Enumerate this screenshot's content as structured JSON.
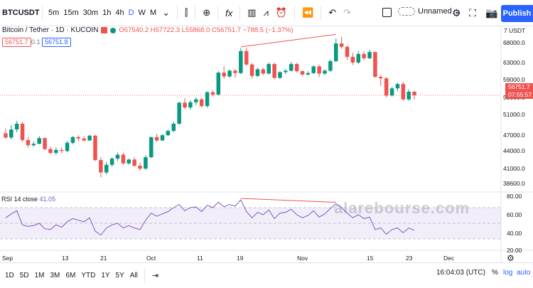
{
  "toolbar": {
    "symbol": "BTCUSDT",
    "intervals": [
      "5m",
      "15m",
      "30m",
      "1h",
      "4h",
      "D",
      "W",
      "M"
    ],
    "active_interval": "D",
    "icons": [
      "candles-icon",
      "add-compare-icon",
      "indicators-icon",
      "templates-icon",
      "alert-icon",
      "replay-icon",
      "undo-icon",
      "redo-icon"
    ],
    "layout_name": "Unnamed",
    "publish_label": "Publish"
  },
  "legend": {
    "title": "Bitcoin / Tether · 1D · KUCOIN",
    "ohlc": "O57540.2 H57722.3 L55868.0 C56751.7 −788.5 (−1.37%)",
    "bid": "56751.7",
    "spread": "0.1",
    "ask": "56751.8"
  },
  "price_axis": {
    "currency": "7 USDT",
    "ticks": [
      "68000.0",
      "63000.0",
      "59000.0",
      "55000.0",
      "51000.0",
      "47000.0",
      "44000.0",
      "41000.0",
      "38600.0"
    ],
    "last_price": "56751.7",
    "countdown": "07:55:57"
  },
  "rsi": {
    "label": "RSI 14 close",
    "value": "41.05",
    "ticks": [
      "80.00",
      "60.00",
      "40.00",
      "20.00"
    ]
  },
  "time_axis": {
    "ticks": [
      "Sep",
      "13",
      "21",
      "Oct",
      "11",
      "19",
      "Nov",
      "15",
      "23",
      "Dec"
    ]
  },
  "bottom": {
    "ranges": [
      "1D",
      "5D",
      "1M",
      "3M",
      "6M",
      "YTD",
      "1Y",
      "5Y",
      "All"
    ],
    "clock": "16:04:03 (UTC)",
    "percent": "%",
    "log": "log",
    "auto": "auto"
  },
  "watermark": "alarebourse.com",
  "colors": {
    "up": "#089981",
    "down": "#ef5350",
    "rsi": "#7e57c2",
    "accent": "#2962ff"
  },
  "chart_data": {
    "type": "candlestick",
    "ylim": [
      38000,
      70000
    ],
    "candles": [
      [
        48800,
        49800,
        47600,
        47900
      ],
      [
        47900,
        50500,
        47500,
        49600
      ],
      [
        49600,
        51400,
        49000,
        50800
      ],
      [
        50800,
        51200,
        47000,
        47400
      ],
      [
        47400,
        48000,
        45800,
        46300
      ],
      [
        46300,
        47100,
        46000,
        46600
      ],
      [
        46600,
        48200,
        46500,
        47800
      ],
      [
        47800,
        47900,
        45200,
        45500
      ],
      [
        45500,
        46000,
        44400,
        44700
      ],
      [
        44700,
        45800,
        44200,
        45300
      ],
      [
        45300,
        45800,
        44600,
        45100
      ],
      [
        45100,
        47200,
        44800,
        46800
      ],
      [
        46800,
        48200,
        46500,
        48000
      ],
      [
        48000,
        48400,
        47100,
        47700
      ],
      [
        47700,
        48100,
        47000,
        47300
      ],
      [
        47300,
        48500,
        47200,
        48300
      ],
      [
        48300,
        48500,
        43000,
        43200
      ],
      [
        43200,
        43800,
        39600,
        40600
      ],
      [
        40600,
        42800,
        40200,
        42200
      ],
      [
        42200,
        43800,
        41800,
        43500
      ],
      [
        43500,
        44800,
        43000,
        44300
      ],
      [
        44300,
        44700,
        42200,
        42500
      ],
      [
        42500,
        43500,
        42200,
        43300
      ],
      [
        43300,
        43800,
        41800,
        42000
      ],
      [
        42000,
        42600,
        41000,
        41400
      ],
      [
        41400,
        44200,
        41200,
        43800
      ],
      [
        43800,
        48100,
        43600,
        48000
      ],
      [
        48000,
        48700,
        47000,
        47300
      ],
      [
        47300,
        48600,
        47200,
        48400
      ],
      [
        48400,
        49600,
        48200,
        49300
      ],
      [
        49300,
        51200,
        49000,
        50800
      ],
      [
        50800,
        55400,
        50600,
        55200
      ],
      [
        55200,
        56100,
        53900,
        54200
      ],
      [
        54200,
        55700,
        53700,
        55300
      ],
      [
        55300,
        56300,
        54700,
        55900
      ],
      [
        55900,
        56300,
        54200,
        54500
      ],
      [
        54500,
        57600,
        54200,
        57400
      ],
      [
        57400,
        57800,
        56500,
        56900
      ],
      [
        56900,
        61800,
        56700,
        61500
      ],
      [
        61500,
        62800,
        60200,
        60700
      ],
      [
        60700,
        62200,
        60400,
        61900
      ],
      [
        61900,
        62300,
        60500,
        61400
      ],
      [
        61400,
        66600,
        61200,
        66000
      ],
      [
        66000,
        66700,
        62900,
        63200
      ],
      [
        63200,
        63500,
        60300,
        60800
      ],
      [
        60800,
        62500,
        60600,
        62200
      ],
      [
        62200,
        62500,
        61000,
        61300
      ],
      [
        61300,
        63600,
        61100,
        63300
      ],
      [
        63300,
        63600,
        60100,
        60400
      ],
      [
        60400,
        61800,
        60200,
        61600
      ],
      [
        61600,
        62300,
        61200,
        61900
      ],
      [
        61900,
        63700,
        61700,
        63300
      ],
      [
        63300,
        63500,
        61500,
        61800
      ],
      [
        61800,
        62000,
        60800,
        61100
      ],
      [
        61100,
        61800,
        60900,
        61400
      ],
      [
        61400,
        63000,
        61200,
        62800
      ],
      [
        62800,
        63200,
        60600,
        61300
      ],
      [
        61300,
        62200,
        61000,
        61900
      ],
      [
        61900,
        64200,
        61600,
        63900
      ],
      [
        63900,
        68600,
        63700,
        67600
      ],
      [
        67600,
        69000,
        66500,
        66900
      ],
      [
        66900,
        67200,
        64200,
        64800
      ],
      [
        64800,
        65600,
        63100,
        63600
      ],
      [
        63600,
        66000,
        63300,
        65400
      ],
      [
        65400,
        66000,
        64100,
        64500
      ],
      [
        64500,
        66300,
        64300,
        65800
      ],
      [
        65800,
        65900,
        60500,
        60600
      ],
      [
        60600,
        61000,
        58700,
        60300
      ],
      [
        60300,
        60600,
        56300,
        56700
      ],
      [
        56700,
        58500,
        56500,
        58200
      ],
      [
        58200,
        59400,
        57600,
        59100
      ],
      [
        59100,
        59600,
        55600,
        55900
      ],
      [
        55900,
        58000,
        55600,
        57500
      ],
      [
        57500,
        57700,
        55900,
        56750
      ]
    ],
    "rsi_values": [
      57,
      62,
      66,
      48,
      46,
      47,
      50,
      43,
      42,
      48,
      45,
      52,
      56,
      54,
      52,
      57,
      40,
      35,
      44,
      48,
      50,
      44,
      47,
      44,
      42,
      54,
      63,
      59,
      62,
      65,
      70,
      74,
      66,
      70,
      71,
      65,
      73,
      70,
      77,
      71,
      74,
      72,
      80,
      65,
      57,
      64,
      61,
      67,
      56,
      63,
      64,
      68,
      61,
      57,
      60,
      66,
      58,
      62,
      69,
      75,
      70,
      63,
      57,
      61,
      56,
      58,
      42,
      44,
      36,
      42,
      44,
      38,
      44,
      41
    ]
  }
}
